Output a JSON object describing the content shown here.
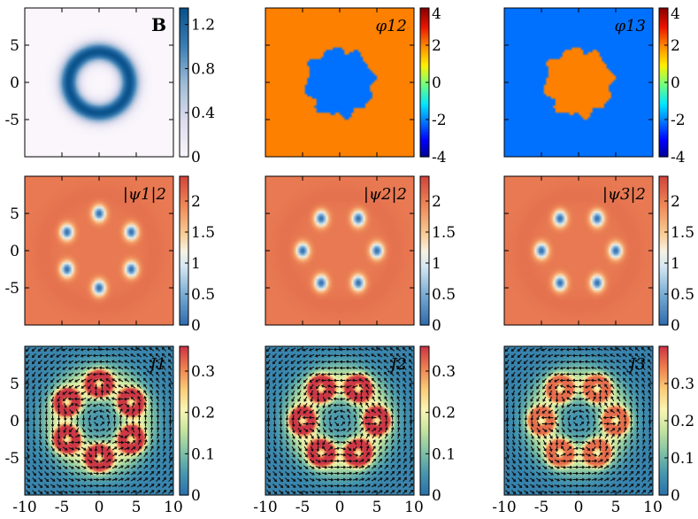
{
  "chart_data": [
    {
      "type": "heatmap",
      "label": "B",
      "field": "ring",
      "xlim": [
        -10,
        10
      ],
      "ylim": [
        -10,
        10
      ],
      "yticks": [
        "5",
        "0",
        "-5"
      ],
      "xticks": [],
      "colorbar": {
        "range": [
          0,
          1.35
        ],
        "ticks": [
          "1.2",
          "0.8",
          "0.4",
          "0"
        ],
        "tick_values": [
          1.2,
          0.8,
          0.4,
          0
        ],
        "colormap": "white-blue"
      }
    },
    {
      "type": "heatmap",
      "label": "φ12",
      "field": "phase_inner_low",
      "xlim": [
        -10,
        10
      ],
      "ylim": [
        -10,
        10
      ],
      "yticks": [],
      "xticks": [],
      "inner_value": -2.1,
      "outer_value": 2.1,
      "disk_radius": 4.5,
      "colorbar": {
        "range": [
          -4,
          4
        ],
        "ticks": [
          "4",
          "2",
          "0",
          "-2",
          "-4"
        ],
        "tick_values": [
          4,
          2,
          0,
          -2,
          -4
        ],
        "colormap": "jet"
      }
    },
    {
      "type": "heatmap",
      "label": "φ13",
      "field": "phase_inner_high",
      "xlim": [
        -10,
        10
      ],
      "ylim": [
        -10,
        10
      ],
      "yticks": [],
      "xticks": [],
      "inner_value": 2.1,
      "outer_value": -2.1,
      "disk_radius": 4.5,
      "colorbar": {
        "range": [
          -4,
          4
        ],
        "ticks": [
          "4",
          "2",
          "0",
          "-2",
          "-4"
        ],
        "tick_values": [
          4,
          2,
          0,
          -2,
          -4
        ],
        "colormap": "jet"
      }
    },
    {
      "type": "heatmap",
      "label": "|ψ1|2",
      "field": "vortices",
      "vortex_phase": 0,
      "vortex_count": 6,
      "vortex_radius": 5.0,
      "xlim": [
        -10,
        10
      ],
      "ylim": [
        -10,
        10
      ],
      "yticks": [
        "5",
        "0",
        "-5"
      ],
      "xticks": [],
      "background_value": 2.05,
      "colorbar": {
        "range": [
          0,
          2.4
        ],
        "ticks": [
          "2",
          "1.5",
          "1",
          "0.5",
          "0"
        ],
        "tick_values": [
          2,
          1.5,
          1,
          0.5,
          0
        ],
        "colormap": "coolwarm"
      }
    },
    {
      "type": "heatmap",
      "label": "|ψ2|2",
      "field": "vortices",
      "vortex_phase": 30,
      "vortex_count": 6,
      "vortex_radius": 5.0,
      "xlim": [
        -10,
        10
      ],
      "ylim": [
        -10,
        10
      ],
      "yticks": [],
      "xticks": [],
      "background_value": 2.05,
      "colorbar": {
        "range": [
          0,
          2.4
        ],
        "ticks": [
          "2",
          "1.5",
          "1",
          "0.5",
          "0"
        ],
        "tick_values": [
          2,
          1.5,
          1,
          0.5,
          0
        ],
        "colormap": "coolwarm"
      }
    },
    {
      "type": "heatmap",
      "label": "|ψ3|2",
      "field": "vortices",
      "vortex_phase": 30,
      "vortex_count": 6,
      "vortex_radius": 5.0,
      "xlim": [
        -10,
        10
      ],
      "ylim": [
        -10,
        10
      ],
      "yticks": [],
      "xticks": [],
      "background_value": 2.05,
      "colorbar": {
        "range": [
          0,
          2.4
        ],
        "ticks": [
          "2",
          "1.5",
          "1",
          "0.5",
          "0"
        ],
        "tick_values": [
          2,
          1.5,
          1,
          0.5,
          0
        ],
        "colormap": "coolwarm"
      }
    },
    {
      "type": "heatmap",
      "label": "J1",
      "field": "current",
      "vortex_phase": 0,
      "vortex_count": 6,
      "vortex_radius": 5.0,
      "xlim": [
        -10,
        10
      ],
      "ylim": [
        -10,
        10
      ],
      "yticks": [
        "5",
        "0",
        "-5"
      ],
      "xticks": [
        "-10",
        "-5",
        "0",
        "5",
        "10"
      ],
      "colorbar": {
        "range": [
          0,
          0.36
        ],
        "ticks": [
          "0.3",
          "0.2",
          "0.1",
          "0"
        ],
        "tick_values": [
          0.3,
          0.2,
          0.1,
          0
        ],
        "colormap": "spectral"
      }
    },
    {
      "type": "heatmap",
      "label": "J2",
      "field": "current",
      "vortex_phase": 30,
      "vortex_count": 6,
      "vortex_radius": 5.0,
      "xlim": [
        -10,
        10
      ],
      "ylim": [
        -10,
        10
      ],
      "yticks": [],
      "xticks": [
        "-10",
        "-5",
        "0",
        "5",
        "10"
      ],
      "colorbar": {
        "range": [
          0,
          0.36
        ],
        "ticks": [
          "0.3",
          "0.2",
          "0.1",
          "0"
        ],
        "tick_values": [
          0.3,
          0.2,
          0.1,
          0
        ],
        "colormap": "spectral"
      }
    },
    {
      "type": "heatmap",
      "label": "J3",
      "field": "current",
      "vortex_phase": 30,
      "vortex_count": 6,
      "vortex_radius": 5.0,
      "xlim": [
        -10,
        10
      ],
      "ylim": [
        -10,
        10
      ],
      "yticks": [],
      "xticks": [
        "-10",
        "-5",
        "0",
        "5",
        "10"
      ],
      "colorbar": {
        "range": [
          0,
          0.4
        ],
        "ticks": [
          "0.3",
          "0.2",
          "0.1",
          "0"
        ],
        "tick_values": [
          0.3,
          0.2,
          0.1,
          0
        ],
        "colormap": "spectral"
      }
    }
  ]
}
